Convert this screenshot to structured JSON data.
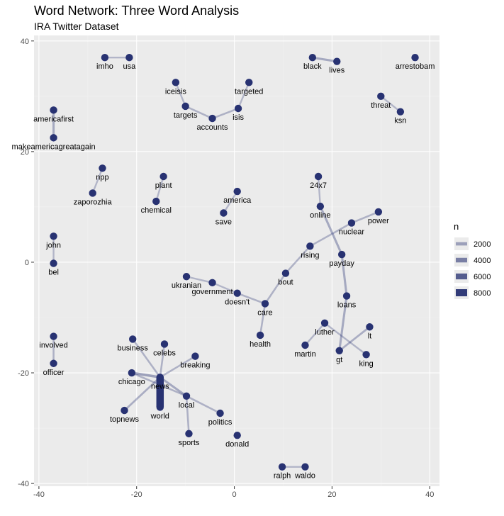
{
  "chart_data": {
    "type": "network",
    "title": "Word Network: Three Word Analysis",
    "subtitle": "IRA Twitter Dataset",
    "xlim": [
      -41,
      42
    ],
    "ylim": [
      -40.5,
      41
    ],
    "x_ticks": [
      -40,
      -20,
      0,
      20,
      40
    ],
    "y_ticks": [
      -40,
      -20,
      0,
      20,
      40
    ],
    "colors": {
      "panel": "#ebebeb",
      "grid_major": "#ffffff",
      "grid_minor": "#f2f2f2",
      "node": "#283272",
      "edge": "#283272"
    },
    "legend": {
      "title": "n",
      "position": "right",
      "entries": [
        {
          "label": "2000",
          "value": 2000
        },
        {
          "label": "4000",
          "value": 4000
        },
        {
          "label": "6000",
          "value": 6000
        },
        {
          "label": "8000",
          "value": 8000
        }
      ]
    },
    "nodes": [
      {
        "name": "imho",
        "x": -26.5,
        "y": 37
      },
      {
        "name": "usa",
        "x": -21.5,
        "y": 37
      },
      {
        "name": "black",
        "x": 16,
        "y": 37
      },
      {
        "name": "lives",
        "x": 21,
        "y": 36.3
      },
      {
        "name": "arrestobam",
        "x": 37,
        "y": 37
      },
      {
        "name": "iceisis",
        "x": -12,
        "y": 32.5
      },
      {
        "name": "targeted",
        "x": 3,
        "y": 32.5
      },
      {
        "name": "targets",
        "x": -10,
        "y": 28.2
      },
      {
        "name": "accounts",
        "x": -4.5,
        "y": 26
      },
      {
        "name": "isis",
        "x": 0.8,
        "y": 27.8
      },
      {
        "name": "threat",
        "x": 30,
        "y": 30
      },
      {
        "name": "ksn",
        "x": 34,
        "y": 27.2
      },
      {
        "name": "americafirst",
        "x": -37,
        "y": 27.5
      },
      {
        "name": "makeamericagreatagain",
        "x": -37,
        "y": 22.5
      },
      {
        "name": "npp",
        "x": -27,
        "y": 17
      },
      {
        "name": "zaporozhia",
        "x": -29,
        "y": 12.5
      },
      {
        "name": "plant",
        "x": -14.5,
        "y": 15.5
      },
      {
        "name": "chemical",
        "x": -16,
        "y": 11
      },
      {
        "name": "america",
        "x": 0.6,
        "y": 12.8
      },
      {
        "name": "save",
        "x": -2.2,
        "y": 8.9
      },
      {
        "name": "24x7",
        "x": 17.2,
        "y": 15.5
      },
      {
        "name": "online",
        "x": 17.6,
        "y": 10.1
      },
      {
        "name": "nuclear",
        "x": 24,
        "y": 7.1
      },
      {
        "name": "power",
        "x": 29.5,
        "y": 9.1
      },
      {
        "name": "rising",
        "x": 15.5,
        "y": 2.9
      },
      {
        "name": "payday",
        "x": 22,
        "y": 1.4
      },
      {
        "name": "john",
        "x": -37,
        "y": 4.7
      },
      {
        "name": "bel",
        "x": -37,
        "y": -0.2
      },
      {
        "name": "bout",
        "x": 10.5,
        "y": -2
      },
      {
        "name": "ukranian",
        "x": -9.8,
        "y": -2.6
      },
      {
        "name": "government",
        "x": -4.5,
        "y": -3.7
      },
      {
        "name": "doesn't",
        "x": 0.6,
        "y": -5.6
      },
      {
        "name": "care",
        "x": 6.3,
        "y": -7.5
      },
      {
        "name": "loans",
        "x": 23,
        "y": -6.1
      },
      {
        "name": "health",
        "x": 5.3,
        "y": -13.2
      },
      {
        "name": "luther",
        "x": 18.5,
        "y": -11
      },
      {
        "name": "lt",
        "x": 27.7,
        "y": -11.7
      },
      {
        "name": "martin",
        "x": 14.5,
        "y": -15
      },
      {
        "name": "gt",
        "x": 21.5,
        "y": -16
      },
      {
        "name": "king",
        "x": 27,
        "y": -16.7
      },
      {
        "name": "involved",
        "x": -37,
        "y": -13.4
      },
      {
        "name": "officer",
        "x": -37,
        "y": -18.3
      },
      {
        "name": "business",
        "x": -20.8,
        "y": -13.9
      },
      {
        "name": "celebs",
        "x": -14.3,
        "y": -14.8
      },
      {
        "name": "breaking",
        "x": -8,
        "y": -17
      },
      {
        "name": "chicago",
        "x": -21,
        "y": -20
      },
      {
        "name": "news",
        "x": -15.2,
        "y": -20.8
      },
      {
        "name": "local",
        "x": -9.8,
        "y": -24.2
      },
      {
        "name": "world",
        "x": -15.2,
        "y": -26.2
      },
      {
        "name": "topnews",
        "x": -22.5,
        "y": -26.8
      },
      {
        "name": "politics",
        "x": -2.9,
        "y": -27.3
      },
      {
        "name": "sports",
        "x": -9.3,
        "y": -31
      },
      {
        "name": "donald",
        "x": 0.6,
        "y": -31.3
      },
      {
        "name": "ralph",
        "x": 9.8,
        "y": -37
      },
      {
        "name": "waldo",
        "x": 14.5,
        "y": -37
      }
    ],
    "edges": [
      {
        "from": "imho",
        "to": "usa",
        "n": 800
      },
      {
        "from": "black",
        "to": "lives",
        "n": 1500
      },
      {
        "from": "iceisis",
        "to": "targets",
        "n": 800
      },
      {
        "from": "targets",
        "to": "accounts",
        "n": 1000
      },
      {
        "from": "accounts",
        "to": "isis",
        "n": 1000
      },
      {
        "from": "isis",
        "to": "targeted",
        "n": 800
      },
      {
        "from": "threat",
        "to": "ksn",
        "n": 800
      },
      {
        "from": "americafirst",
        "to": "makeamericagreatagain",
        "n": 1500
      },
      {
        "from": "npp",
        "to": "zaporozhia",
        "n": 800
      },
      {
        "from": "plant",
        "to": "chemical",
        "n": 800
      },
      {
        "from": "america",
        "to": "save",
        "n": 800
      },
      {
        "from": "24x7",
        "to": "online",
        "n": 800
      },
      {
        "from": "online",
        "to": "payday",
        "n": 1500
      },
      {
        "from": "nuclear",
        "to": "power",
        "n": 1000
      },
      {
        "from": "nuclear",
        "to": "rising",
        "n": 1000
      },
      {
        "from": "rising",
        "to": "bout",
        "n": 1000
      },
      {
        "from": "bout",
        "to": "care",
        "n": 1000
      },
      {
        "from": "payday",
        "to": "loans",
        "n": 1500
      },
      {
        "from": "loans",
        "to": "gt",
        "n": 1500
      },
      {
        "from": "lt",
        "to": "gt",
        "n": 1200
      },
      {
        "from": "john",
        "to": "bel",
        "n": 800
      },
      {
        "from": "ukranian",
        "to": "government",
        "n": 800
      },
      {
        "from": "government",
        "to": "doesn't",
        "n": 800
      },
      {
        "from": "doesn't",
        "to": "care",
        "n": 1000
      },
      {
        "from": "care",
        "to": "health",
        "n": 1000
      },
      {
        "from": "luther",
        "to": "martin",
        "n": 900
      },
      {
        "from": "luther",
        "to": "king",
        "n": 900
      },
      {
        "from": "involved",
        "to": "officer",
        "n": 1000
      },
      {
        "from": "business",
        "to": "news",
        "n": 1000
      },
      {
        "from": "celebs",
        "to": "news",
        "n": 1000
      },
      {
        "from": "breaking",
        "to": "news",
        "n": 1000
      },
      {
        "from": "chicago",
        "to": "news",
        "n": 2000
      },
      {
        "from": "chicago",
        "to": "local",
        "n": 1000
      },
      {
        "from": "news",
        "to": "world",
        "n": 8500
      },
      {
        "from": "news",
        "to": "local",
        "n": 1500
      },
      {
        "from": "topnews",
        "to": "news",
        "n": 1200
      },
      {
        "from": "local",
        "to": "politics",
        "n": 1000
      },
      {
        "from": "local",
        "to": "sports",
        "n": 1000
      },
      {
        "from": "ralph",
        "to": "waldo",
        "n": 800
      }
    ]
  }
}
